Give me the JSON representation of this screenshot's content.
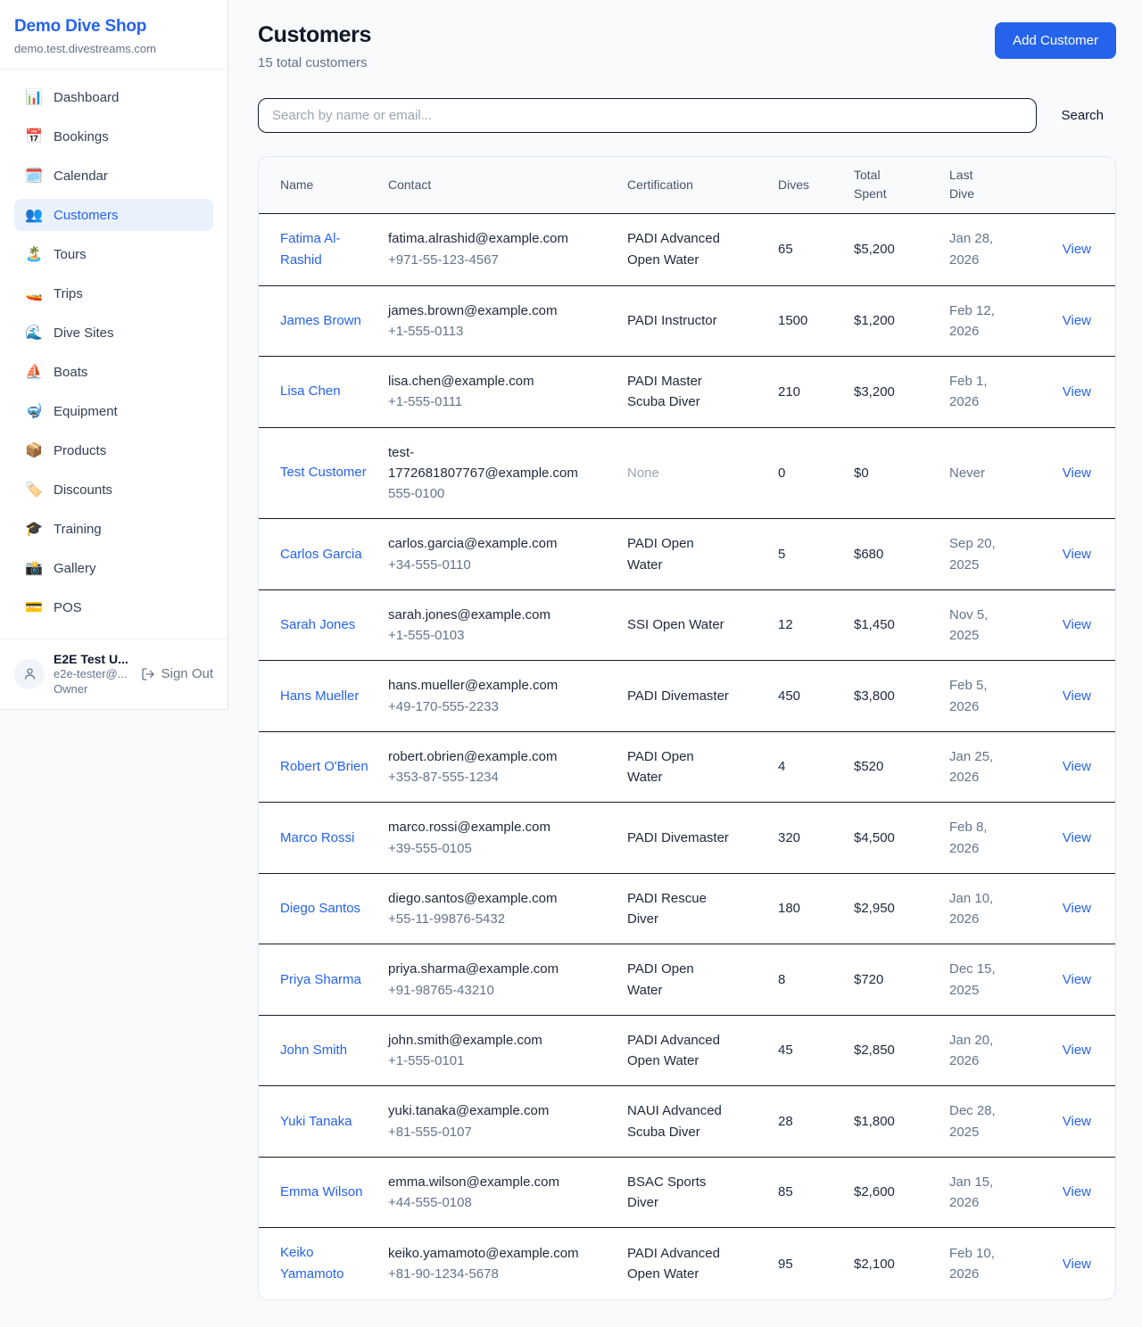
{
  "sidebar": {
    "brand": "Demo Dive Shop",
    "domain": "demo.test.divestreams.com",
    "nav": [
      {
        "name": "dashboard",
        "icon": "📊",
        "label": "Dashboard",
        "active": false
      },
      {
        "name": "bookings",
        "icon": "📅",
        "label": "Bookings",
        "active": false
      },
      {
        "name": "calendar",
        "icon": "🗓️",
        "label": "Calendar",
        "active": false
      },
      {
        "name": "customers",
        "icon": "👥",
        "label": "Customers",
        "active": true
      },
      {
        "name": "tours",
        "icon": "🏝️",
        "label": "Tours",
        "active": false
      },
      {
        "name": "trips",
        "icon": "🚤",
        "label": "Trips",
        "active": false
      },
      {
        "name": "dive-sites",
        "icon": "🌊",
        "label": "Dive Sites",
        "active": false
      },
      {
        "name": "boats",
        "icon": "⛵",
        "label": "Boats",
        "active": false
      },
      {
        "name": "equipment",
        "icon": "🤿",
        "label": "Equipment",
        "active": false
      },
      {
        "name": "products",
        "icon": "📦",
        "label": "Products",
        "active": false
      },
      {
        "name": "discounts",
        "icon": "🏷️",
        "label": "Discounts",
        "active": false
      },
      {
        "name": "training",
        "icon": "🎓",
        "label": "Training",
        "active": false
      },
      {
        "name": "gallery",
        "icon": "📸",
        "label": "Gallery",
        "active": false
      },
      {
        "name": "pos",
        "icon": "💳",
        "label": "POS",
        "active": false
      }
    ],
    "user": {
      "name": "E2E Test U...",
      "email": "e2e-tester@...",
      "role": "Owner",
      "sign_out_label": "Sign Out"
    }
  },
  "page": {
    "title": "Customers",
    "subtitle": "15 total customers",
    "add_customer_label": "Add Customer"
  },
  "search": {
    "placeholder": "Search by name or email...",
    "button_label": "Search"
  },
  "table": {
    "headers": [
      "Name",
      "Contact",
      "Certification",
      "Dives",
      "Total Spent",
      "Last Dive"
    ],
    "view_label": "View",
    "rows": [
      {
        "name": "Fatima Al-Rashid",
        "email": "fatima.alrashid@example.com",
        "phone": "+971-55-123-4567",
        "certification": "PADI Advanced Open Water",
        "dives": "65",
        "total_spent": "$5,200",
        "last_dive": "Jan 28, 2026"
      },
      {
        "name": "James Brown",
        "email": "james.brown@example.com",
        "phone": "+1-555-0113",
        "certification": "PADI Instructor",
        "dives": "1500",
        "total_spent": "$1,200",
        "last_dive": "Feb 12, 2026"
      },
      {
        "name": "Lisa Chen",
        "email": "lisa.chen@example.com",
        "phone": "+1-555-0111",
        "certification": "PADI Master Scuba Diver",
        "dives": "210",
        "total_spent": "$3,200",
        "last_dive": "Feb 1, 2026"
      },
      {
        "name": "Test Customer",
        "email": "test-1772681807767@example.com",
        "phone": "555-0100",
        "certification": "None",
        "dives": "0",
        "total_spent": "$0",
        "last_dive": "Never"
      },
      {
        "name": "Carlos Garcia",
        "email": "carlos.garcia@example.com",
        "phone": "+34-555-0110",
        "certification": "PADI Open Water",
        "dives": "5",
        "total_spent": "$680",
        "last_dive": "Sep 20, 2025"
      },
      {
        "name": "Sarah Jones",
        "email": "sarah.jones@example.com",
        "phone": "+1-555-0103",
        "certification": "SSI Open Water",
        "dives": "12",
        "total_spent": "$1,450",
        "last_dive": "Nov 5, 2025"
      },
      {
        "name": "Hans Mueller",
        "email": "hans.mueller@example.com",
        "phone": "+49-170-555-2233",
        "certification": "PADI Divemaster",
        "dives": "450",
        "total_spent": "$3,800",
        "last_dive": "Feb 5, 2026"
      },
      {
        "name": "Robert O'Brien",
        "email": "robert.obrien@example.com",
        "phone": "+353-87-555-1234",
        "certification": "PADI Open Water",
        "dives": "4",
        "total_spent": "$520",
        "last_dive": "Jan 25, 2026"
      },
      {
        "name": "Marco Rossi",
        "email": "marco.rossi@example.com",
        "phone": "+39-555-0105",
        "certification": "PADI Divemaster",
        "dives": "320",
        "total_spent": "$4,500",
        "last_dive": "Feb 8, 2026"
      },
      {
        "name": "Diego Santos",
        "email": "diego.santos@example.com",
        "phone": "+55-11-99876-5432",
        "certification": "PADI Rescue Diver",
        "dives": "180",
        "total_spent": "$2,950",
        "last_dive": "Jan 10, 2026"
      },
      {
        "name": "Priya Sharma",
        "email": "priya.sharma@example.com",
        "phone": "+91-98765-43210",
        "certification": "PADI Open Water",
        "dives": "8",
        "total_spent": "$720",
        "last_dive": "Dec 15, 2025"
      },
      {
        "name": "John Smith",
        "email": "john.smith@example.com",
        "phone": "+1-555-0101",
        "certification": "PADI Advanced Open Water",
        "dives": "45",
        "total_spent": "$2,850",
        "last_dive": "Jan 20, 2026"
      },
      {
        "name": "Yuki Tanaka",
        "email": "yuki.tanaka@example.com",
        "phone": "+81-555-0107",
        "certification": "NAUI Advanced Scuba Diver",
        "dives": "28",
        "total_spent": "$1,800",
        "last_dive": "Dec 28, 2025"
      },
      {
        "name": "Emma Wilson",
        "email": "emma.wilson@example.com",
        "phone": "+44-555-0108",
        "certification": "BSAC Sports Diver",
        "dives": "85",
        "total_spent": "$2,600",
        "last_dive": "Jan 15, 2026"
      },
      {
        "name": "Keiko Yamamoto",
        "email": "keiko.yamamoto@example.com",
        "phone": "+81-90-1234-5678",
        "certification": "PADI Advanced Open Water",
        "dives": "95",
        "total_spent": "$2,100",
        "last_dive": "Feb 10, 2026"
      }
    ]
  },
  "colors": {
    "accent_blue": "#2563eb",
    "page_background": "#f8fafc",
    "active_nav_background": "#e9f1fd",
    "row_divider": "#121c2b",
    "light_border": "#e2e8f0",
    "dark_text": "#0f172a",
    "muted_text": "#64748b",
    "faint_text": "#9aa4b2"
  }
}
